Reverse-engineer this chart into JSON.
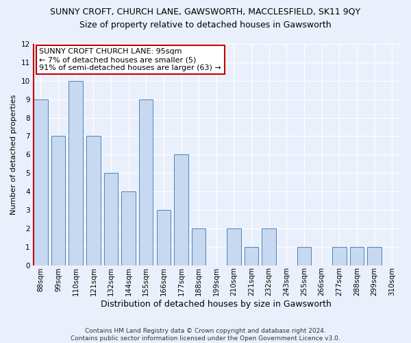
{
  "title": "SUNNY CROFT, CHURCH LANE, GAWSWORTH, MACCLESFIELD, SK11 9QY",
  "subtitle": "Size of property relative to detached houses in Gawsworth",
  "xlabel": "Distribution of detached houses by size in Gawsworth",
  "ylabel": "Number of detached properties",
  "categories": [
    "88sqm",
    "99sqm",
    "110sqm",
    "121sqm",
    "132sqm",
    "144sqm",
    "155sqm",
    "166sqm",
    "177sqm",
    "188sqm",
    "199sqm",
    "210sqm",
    "221sqm",
    "232sqm",
    "243sqm",
    "255sqm",
    "266sqm",
    "277sqm",
    "288sqm",
    "299sqm",
    "310sqm"
  ],
  "values": [
    9,
    7,
    10,
    7,
    5,
    4,
    9,
    3,
    6,
    2,
    0,
    2,
    1,
    2,
    0,
    1,
    0,
    1,
    1,
    1,
    0
  ],
  "bar_color": "#c6d9f0",
  "bar_edge_color": "#4f81bd",
  "highlight_color": "#c00000",
  "annotation_box_color": "#c00000",
  "annotation_line1": "SUNNY CROFT CHURCH LANE: 95sqm",
  "annotation_line2": "← 7% of detached houses are smaller (5)",
  "annotation_line3": "91% of semi-detached houses are larger (63) →",
  "ylim": [
    0,
    12
  ],
  "yticks": [
    0,
    1,
    2,
    3,
    4,
    5,
    6,
    7,
    8,
    9,
    10,
    11,
    12
  ],
  "footnote": "Contains HM Land Registry data © Crown copyright and database right 2024.\nContains public sector information licensed under the Open Government Licence v3.0.",
  "background_color": "#eaf0fb",
  "grid_color": "#ffffff",
  "title_fontsize": 9,
  "subtitle_fontsize": 9,
  "xlabel_fontsize": 9,
  "ylabel_fontsize": 8,
  "tick_fontsize": 7.5,
  "annot_fontsize": 8,
  "footnote_fontsize": 6.5
}
